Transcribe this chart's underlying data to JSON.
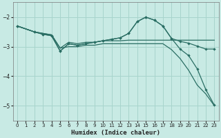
{
  "xlabel": "Humidex (Indice chaleur)",
  "ylabel": "",
  "background_color": "#c8eae4",
  "grid_color": "#a8d4cc",
  "line_color": "#2a6e64",
  "xlim": [
    -0.5,
    23.5
  ],
  "ylim": [
    -5.5,
    -1.5
  ],
  "yticks": [
    -5,
    -4,
    -3,
    -2
  ],
  "xticks": [
    0,
    1,
    2,
    3,
    4,
    5,
    6,
    7,
    8,
    9,
    10,
    11,
    12,
    13,
    14,
    15,
    16,
    17,
    18,
    19,
    20,
    21,
    22,
    23
  ],
  "series1_x": [
    0,
    1,
    2,
    3,
    4,
    5,
    6,
    7,
    8,
    9,
    10,
    11,
    12,
    13,
    14,
    15,
    16,
    17,
    18,
    19,
    20,
    21,
    22,
    23
  ],
  "series1_y": [
    -2.3,
    -2.4,
    -2.5,
    -2.55,
    -2.6,
    -3.05,
    -2.85,
    -2.9,
    -2.85,
    -2.85,
    -2.8,
    -2.8,
    -2.8,
    -2.78,
    -2.78,
    -2.78,
    -2.78,
    -2.78,
    -2.78,
    -2.78,
    -2.78,
    -2.78,
    -2.78,
    -2.78
  ],
  "series2_x": [
    0,
    1,
    2,
    3,
    4,
    5,
    6,
    7,
    8,
    9,
    10,
    11,
    12,
    13,
    14,
    15,
    16,
    17,
    18,
    19,
    20,
    21,
    22,
    23
  ],
  "series2_y": [
    -2.3,
    -2.4,
    -2.5,
    -2.55,
    -2.6,
    -3.05,
    -3.0,
    -3.0,
    -2.95,
    -2.95,
    -2.9,
    -2.9,
    -2.9,
    -2.9,
    -2.9,
    -2.9,
    -2.9,
    -2.9,
    -3.1,
    -3.4,
    -3.8,
    -4.3,
    -4.6,
    -5.0
  ],
  "series3_x": [
    0,
    2,
    3,
    4,
    5,
    6,
    7,
    8,
    9,
    10,
    11,
    12,
    13,
    14,
    15,
    16,
    17,
    18,
    19,
    20,
    21,
    22,
    23
  ],
  "series3_y": [
    -2.3,
    -2.5,
    -2.58,
    -2.63,
    -3.15,
    -2.9,
    -2.95,
    -2.9,
    -2.85,
    -2.8,
    -2.75,
    -2.7,
    -2.55,
    -2.15,
    -2.0,
    -2.1,
    -2.3,
    -2.72,
    -2.82,
    -2.88,
    -2.98,
    -3.08,
    -3.08
  ],
  "series4_x": [
    0,
    2,
    3,
    4,
    5,
    6,
    7,
    8,
    9,
    10,
    11,
    12,
    13,
    14,
    15,
    16,
    17,
    18,
    19,
    20,
    21,
    22,
    23
  ],
  "series4_y": [
    -2.3,
    -2.5,
    -2.58,
    -2.63,
    -3.15,
    -2.9,
    -2.95,
    -2.9,
    -2.85,
    -2.8,
    -2.75,
    -2.7,
    -2.55,
    -2.15,
    -2.0,
    -2.1,
    -2.3,
    -2.72,
    -3.08,
    -3.3,
    -3.75,
    -4.45,
    -4.98
  ]
}
